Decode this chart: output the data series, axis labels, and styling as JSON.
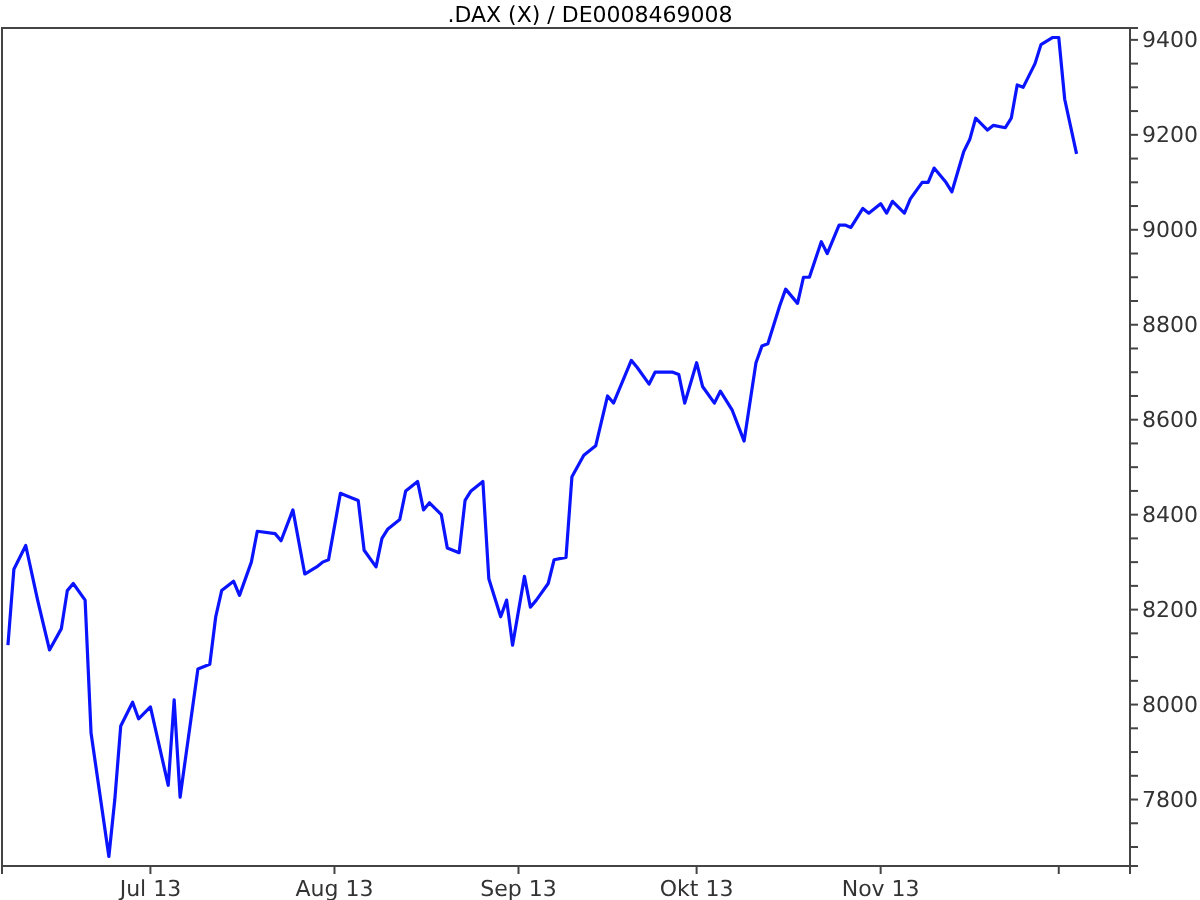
{
  "chart_data": {
    "type": "line",
    "title": ".DAX (X) / DE0008469008",
    "x": [
      "2013-06-07",
      "2013-06-08",
      "2013-06-10",
      "2013-06-12",
      "2013-06-14",
      "2013-06-16",
      "2013-06-17",
      "2013-06-18",
      "2013-06-20",
      "2013-06-21",
      "2013-06-24",
      "2013-06-25",
      "2013-06-26",
      "2013-06-28",
      "2013-06-29",
      "2013-07-01",
      "2013-07-04",
      "2013-07-05",
      "2013-07-06",
      "2013-07-08",
      "2013-07-09",
      "2013-07-11",
      "2013-07-12",
      "2013-07-13",
      "2013-07-15",
      "2013-07-16",
      "2013-07-18",
      "2013-07-19",
      "2013-07-22",
      "2013-07-23",
      "2013-07-25",
      "2013-07-27",
      "2013-07-29",
      "2013-07-30",
      "2013-07-31",
      "2013-08-02",
      "2013-08-03",
      "2013-08-05",
      "2013-08-06",
      "2013-08-08",
      "2013-08-09",
      "2013-08-10",
      "2013-08-12",
      "2013-08-13",
      "2013-08-15",
      "2013-08-16",
      "2013-08-17",
      "2013-08-19",
      "2013-08-20",
      "2013-08-22",
      "2013-08-23",
      "2013-08-24",
      "2013-08-26",
      "2013-08-27",
      "2013-08-29",
      "2013-08-30",
      "2013-08-31",
      "2013-09-02",
      "2013-09-03",
      "2013-09-04",
      "2013-09-06",
      "2013-09-07",
      "2013-09-09",
      "2013-09-10",
      "2013-09-12",
      "2013-09-13",
      "2013-09-14",
      "2013-09-16",
      "2013-09-17",
      "2013-09-18",
      "2013-09-20",
      "2013-09-21",
      "2013-09-23",
      "2013-09-24",
      "2013-09-27",
      "2013-09-28",
      "2013-09-29",
      "2013-10-01",
      "2013-10-02",
      "2013-10-04",
      "2013-10-05",
      "2013-10-07",
      "2013-10-09",
      "2013-10-11",
      "2013-10-12",
      "2013-10-13",
      "2013-10-15",
      "2013-10-16",
      "2013-10-18",
      "2013-10-19",
      "2013-10-20",
      "2013-10-22",
      "2013-10-23",
      "2013-10-25",
      "2013-10-26",
      "2013-10-27",
      "2013-10-29",
      "2013-10-30",
      "2013-11-01",
      "2013-11-02",
      "2013-11-03",
      "2013-11-05",
      "2013-11-06",
      "2013-11-08",
      "2013-11-09",
      "2013-11-10",
      "2013-11-12",
      "2013-11-13",
      "2013-11-15",
      "2013-11-16",
      "2013-11-17",
      "2013-11-19",
      "2013-11-20",
      "2013-11-22",
      "2013-11-23",
      "2013-11-24",
      "2013-11-25",
      "2013-11-27",
      "2013-11-28",
      "2013-11-30",
      "2013-12-01",
      "2013-12-02",
      "2013-12-04"
    ],
    "series": [
      {
        "color": "#0a14ff",
        "values": [
          8125,
          8285,
          8335,
          8220,
          8115,
          8160,
          8240,
          8255,
          8220,
          7940,
          7680,
          7800,
          7955,
          8005,
          7970,
          7995,
          7830,
          8010,
          7805,
          7985,
          8075,
          8085,
          8185,
          8240,
          8260,
          8230,
          8300,
          8365,
          8360,
          8345,
          8410,
          8275,
          8290,
          8300,
          8305,
          8445,
          8440,
          8430,
          8325,
          8290,
          8350,
          8370,
          8390,
          8450,
          8470,
          8410,
          8425,
          8400,
          8330,
          8320,
          8430,
          8450,
          8470,
          8265,
          8185,
          8220,
          8125,
          8270,
          8205,
          8220,
          8255,
          8305,
          8310,
          8480,
          8525,
          8535,
          8545,
          8650,
          8635,
          8665,
          8725,
          8710,
          8675,
          8700,
          8700,
          8695,
          8635,
          8720,
          8670,
          8635,
          8660,
          8620,
          8555,
          8720,
          8755,
          8760,
          8840,
          8875,
          8845,
          8900,
          8900,
          8975,
          8950,
          9010,
          9010,
          9005,
          9045,
          9035,
          9055,
          9035,
          9060,
          9035,
          9065,
          9100,
          9100,
          9130,
          9100,
          9080,
          9165,
          9190,
          9235,
          9210,
          9220,
          9215,
          9235,
          9305,
          9300,
          9350,
          9390,
          9405,
          9405,
          9275,
          9160
        ]
      }
    ],
    "xlim": [
      "2013-06-06",
      "2013-12-13"
    ],
    "xticks": [
      {
        "value": "2013-07-01",
        "label": "Jul 13"
      },
      {
        "value": "2013-08-01",
        "label": "Aug 13"
      },
      {
        "value": "2013-09-01",
        "label": "Sep 13"
      },
      {
        "value": "2013-10-01",
        "label": "Okt 13"
      },
      {
        "value": "2013-11-01",
        "label": "Nov 13"
      },
      {
        "value": "2013-12-01",
        "label": null
      }
    ],
    "ylim": [
      7660,
      9425
    ],
    "yticks": [
      {
        "value": 7700,
        "label": null
      },
      {
        "value": 7750,
        "label": null
      },
      7800,
      {
        "value": 7850,
        "label": null
      },
      {
        "value": 7900,
        "label": null
      },
      {
        "value": 7950,
        "label": null
      },
      8000,
      {
        "value": 8050,
        "label": null
      },
      {
        "value": 8100,
        "label": null
      },
      {
        "value": 8150,
        "label": null
      },
      8200,
      {
        "value": 8250,
        "label": null
      },
      {
        "value": 8300,
        "label": null
      },
      {
        "value": 8350,
        "label": null
      },
      8400,
      {
        "value": 8450,
        "label": null
      },
      {
        "value": 8500,
        "label": null
      },
      {
        "value": 8550,
        "label": null
      },
      8600,
      {
        "value": 8650,
        "label": null
      },
      {
        "value": 8700,
        "label": null
      },
      {
        "value": 8750,
        "label": null
      },
      8800,
      {
        "value": 8850,
        "label": null
      },
      {
        "value": 8900,
        "label": null
      },
      {
        "value": 8950,
        "label": null
      },
      9000,
      {
        "value": 9050,
        "label": null
      },
      {
        "value": 9100,
        "label": null
      },
      {
        "value": 9150,
        "label": null
      },
      9200,
      {
        "value": 9250,
        "label": null
      },
      {
        "value": 9300,
        "label": null
      },
      {
        "value": 9350,
        "label": null
      },
      9400
    ],
    "line_style": "solid"
  }
}
